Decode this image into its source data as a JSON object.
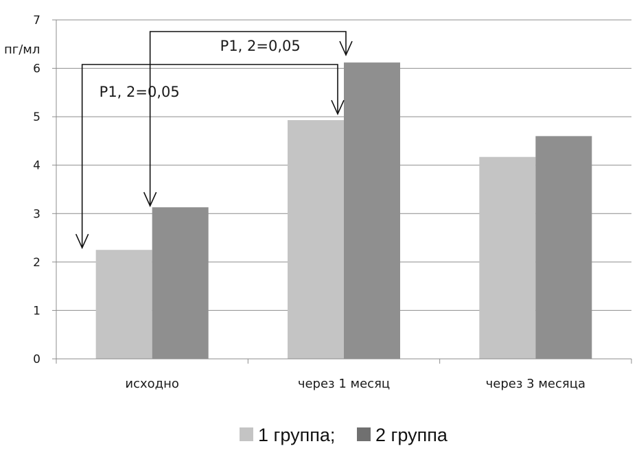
{
  "chart_data": {
    "type": "bar",
    "unit_label": "пг/мл",
    "categories": [
      "исходно",
      "через 1 месяц",
      "через 3 месяца"
    ],
    "series": [
      {
        "name": "1 группа;",
        "color": "#c4c4c4",
        "values": [
          2.25,
          4.93,
          4.17
        ]
      },
      {
        "name": "2 группа",
        "color": "#8f8f8f",
        "values": [
          3.13,
          6.12,
          4.6
        ]
      }
    ],
    "ylim": [
      0,
      7
    ],
    "yticks": [
      0,
      1,
      2,
      3,
      4,
      5,
      6,
      7
    ],
    "grid": true,
    "legend_position": "bottom",
    "legend_colors": [
      "#c4c4c4",
      "#707070"
    ],
    "annotations": [
      {
        "text": "P1, 2=0,05",
        "from_category": 0,
        "from_series": 1,
        "to_category": 1,
        "to_series": 1
      },
      {
        "text": "P1, 2=0,05",
        "from_category": 0,
        "from_series": 0,
        "to_category": 1,
        "to_series": 0
      }
    ]
  }
}
